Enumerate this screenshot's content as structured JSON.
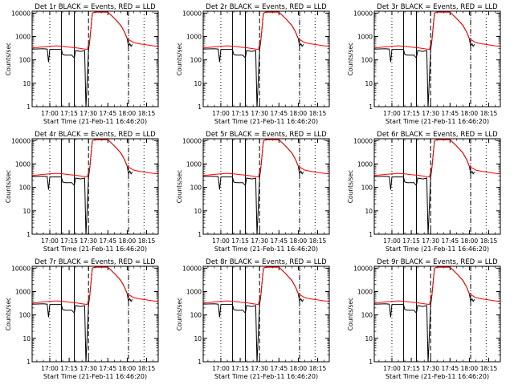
{
  "chart_data": {
    "type": "line",
    "y_scale": "log",
    "ylim": [
      1,
      12000
    ],
    "xlim": [
      "16:46:20",
      "18:24:00"
    ],
    "grid": false,
    "ylabel": "Counts/sec",
    "xlabel": "Start Time (21-Feb-11 16:46:20)",
    "x_tick_labels": [
      "17:00",
      "17:15",
      "17:30",
      "17:45",
      "18:00",
      "18:15"
    ],
    "y_tick_labels": [
      "1",
      "10",
      "100",
      "1000",
      "10000"
    ],
    "y_tick_values": [
      1,
      10,
      100,
      1000,
      10000
    ],
    "vertical_markers": [
      {
        "time": "17:00",
        "style": "dotted"
      },
      {
        "time": "17:09",
        "style": "solid"
      },
      {
        "time": "17:19",
        "style": "solid"
      },
      {
        "time": "17:30",
        "style": "dashed"
      },
      {
        "time": "18:01",
        "style": "dash-dot"
      },
      {
        "time": "18:13",
        "style": "dotted"
      }
    ],
    "panels": [
      {
        "title": "Det 1r BLACK = Events, RED = LLD"
      },
      {
        "title": "Det 2r BLACK = Events, RED = LLD"
      },
      {
        "title": "Det 3r BLACK = Events, RED = LLD"
      },
      {
        "title": "Det 4r BLACK = Events, RED = LLD"
      },
      {
        "title": "Det 5r BLACK = Events, RED = LLD"
      },
      {
        "title": "Det 6r BLACK = Events, RED = LLD"
      },
      {
        "title": "Det 7r BLACK = Events, RED = LLD"
      },
      {
        "title": "Det 8r BLACK = Events, RED = LLD"
      },
      {
        "title": "Det 9r BLACK = Events, RED = LLD"
      }
    ],
    "series": [
      {
        "name": "LLD",
        "color": "#ff0000",
        "x": [
          "16:46:20",
          "16:50",
          "16:55",
          "17:00",
          "17:05",
          "17:10",
          "17:15",
          "17:20",
          "17:25",
          "17:29",
          "17:31",
          "17:33",
          "17:35",
          "17:40",
          "17:45",
          "17:50",
          "17:55",
          "17:58",
          "18:00",
          "18:05",
          "18:10",
          "18:15",
          "18:20",
          "18:24"
        ],
        "y": [
          330,
          340,
          360,
          380,
          400,
          380,
          350,
          330,
          300,
          280,
          700,
          10000,
          11000,
          11000,
          11000,
          6000,
          3000,
          1500,
          800,
          550,
          480,
          440,
          400,
          380
        ]
      },
      {
        "name": "Events",
        "color": "#000000",
        "x": [
          "16:46:20",
          "16:55",
          "16:58",
          "16:59",
          "17:00",
          "17:09",
          "17:10",
          "17:12",
          "17:17",
          "17:19",
          "17:20",
          "17:24",
          "17:27",
          "17:28",
          "17:30",
          "17:31",
          "17:33",
          "17:35",
          "17:40",
          "17:45",
          "17:50",
          "17:55",
          "17:58",
          "18:00",
          "18:01",
          "18:02",
          "18:03",
          "18:04"
        ],
        "y": [
          290,
          300,
          290,
          80,
          280,
          280,
          170,
          160,
          160,
          120,
          250,
          230,
          250,
          0.8,
          260,
          700,
          10000,
          11000,
          11000,
          11000,
          6000,
          3000,
          1500,
          800,
          380,
          500,
          380,
          460
        ]
      }
    ]
  }
}
